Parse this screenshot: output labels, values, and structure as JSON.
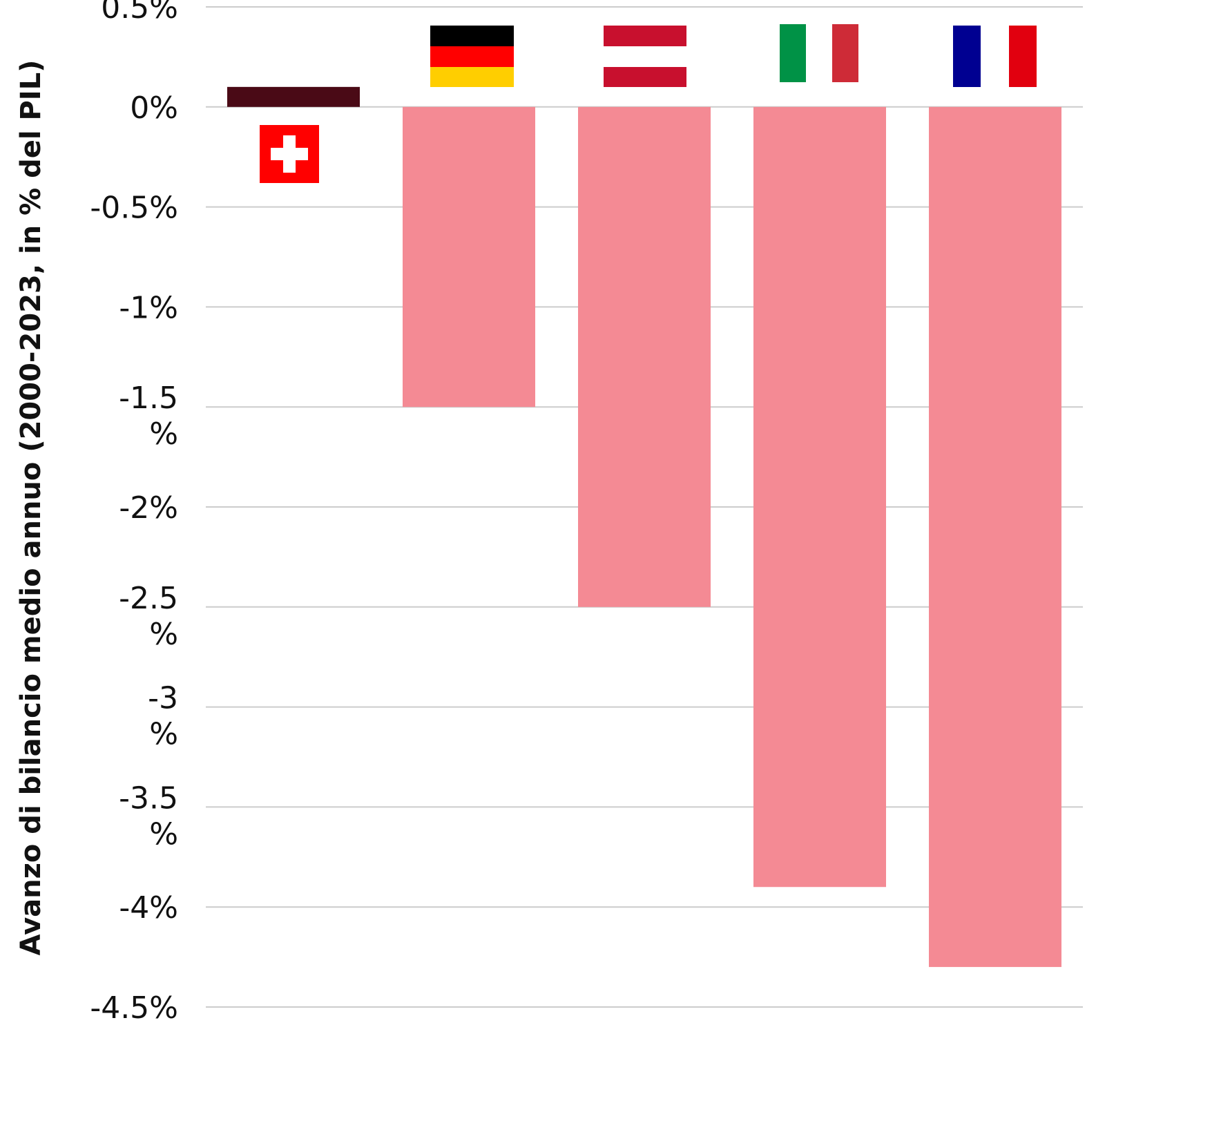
{
  "chart_data": {
    "type": "bar",
    "y_label": "Avanzo di bilancio medio annuo (2000-2023, in % del PIL)",
    "categories": [
      null,
      null,
      null,
      null,
      null
    ],
    "values": [
      0.1,
      -1.5,
      -2.5,
      -3.9,
      -4.3
    ],
    "colors": [
      "#4a0a16",
      "#f48a94",
      "#f48a94",
      "#f48a94",
      "#f48a94"
    ],
    "ylim": [
      -4.5,
      0.5
    ],
    "yticks": [
      {
        "value": 0.5,
        "label": "0.5%"
      },
      {
        "value": 0,
        "label": "0%"
      },
      {
        "value": -0.5,
        "label": "-0.5%"
      },
      {
        "value": -1,
        "label": "-1%"
      },
      {
        "value": -1.5,
        "label": "-1.5 %"
      },
      {
        "value": -2,
        "label": "-2%"
      },
      {
        "value": -2.5,
        "label": "-2.5 %"
      },
      {
        "value": -3,
        "label": "-3 %"
      },
      {
        "value": -3.5,
        "label": "-3.5 %"
      },
      {
        "value": -4,
        "label": "-4%"
      },
      {
        "value": -4.5,
        "label": "-4.5%"
      }
    ],
    "grid": true
  }
}
